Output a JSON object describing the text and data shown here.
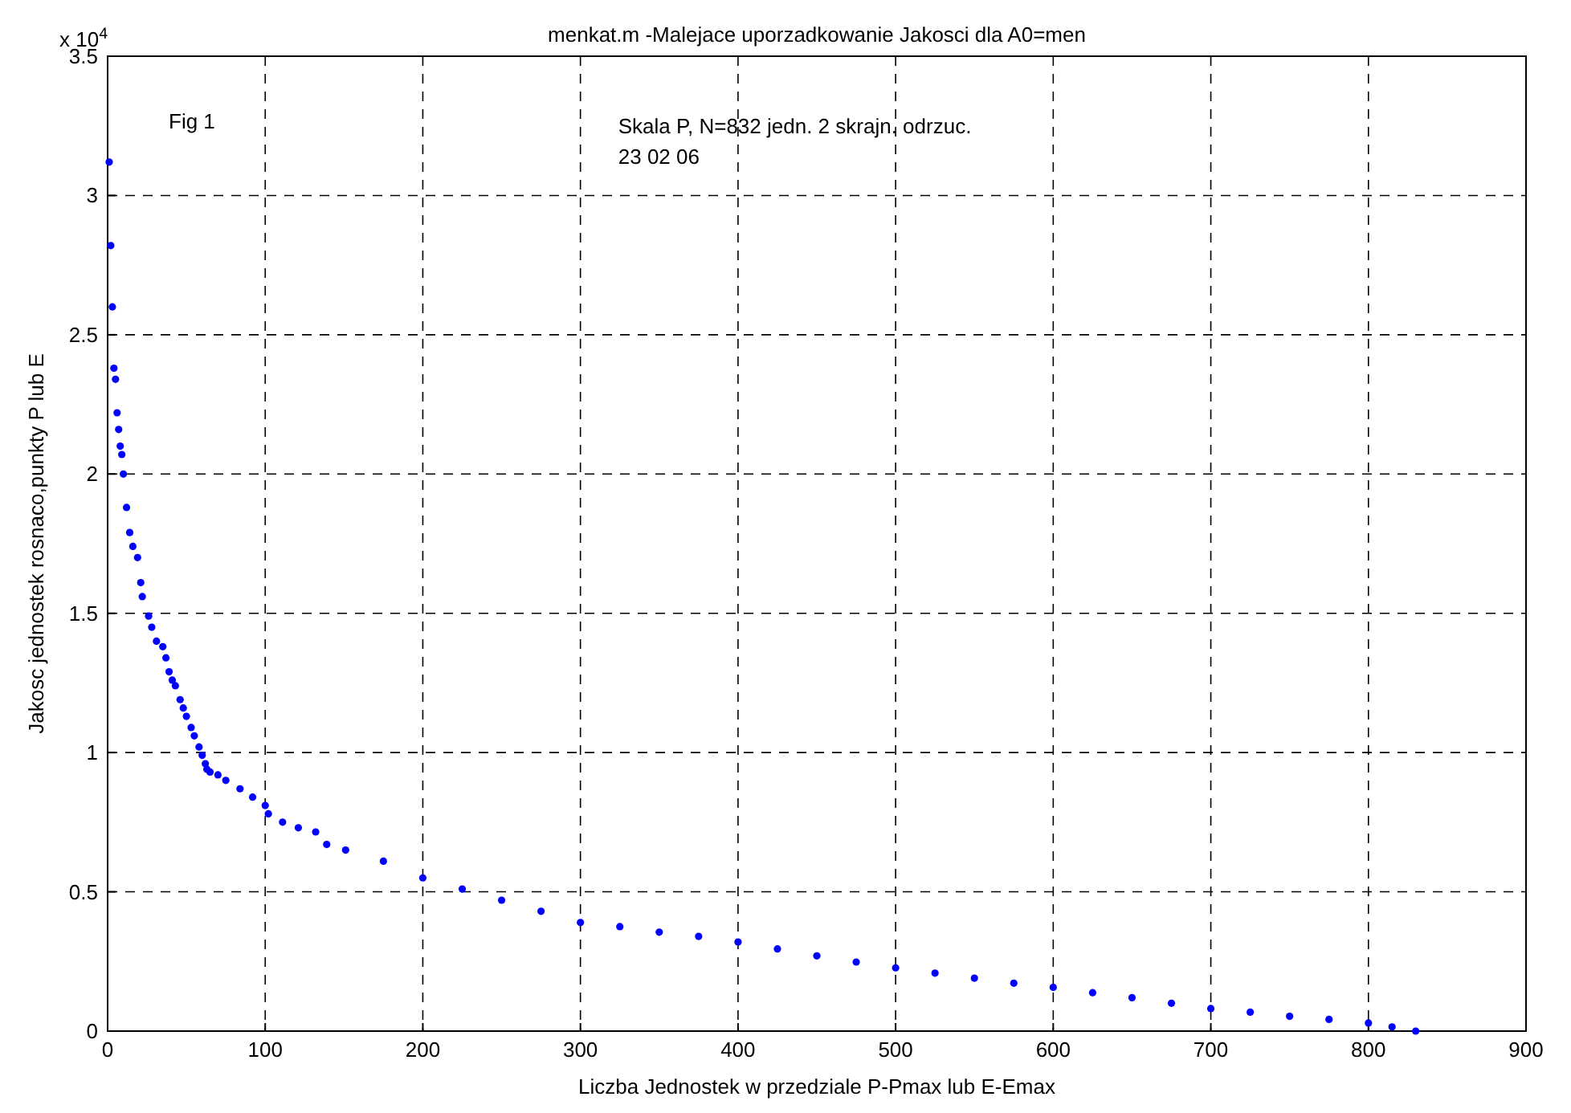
{
  "chart_data": {
    "type": "scatter",
    "title": "menkat.m -Malejace uporzadkowanie Jakosci dla A0=men",
    "xlabel": "Liczba Jednostek w przedziale P-Pmax lub E-Emax",
    "ylabel": "Jakosc jednostek rosnaco,punkty P lub E",
    "annotations": [
      "x 10$^{4}$",
      "Fig 1",
      "Skala P, N=832 jedn. 2 skrajn. odrzuc.",
      "23 02 06"
    ],
    "xlim": [
      0,
      900
    ],
    "xticks": [
      0,
      100,
      200,
      300,
      400,
      500,
      600,
      700,
      800,
      900
    ],
    "ylim": [
      0,
      3.5
    ],
    "yticks": [
      0,
      0.5,
      1,
      1.5,
      2,
      2.5,
      3,
      3.5
    ],
    "grid": true,
    "marker": "circle",
    "series": [
      {
        "color": "#0000ff",
        "x": [
          1,
          2,
          3,
          4,
          5,
          6,
          7,
          8,
          9,
          10,
          12,
          14,
          16,
          19,
          21,
          22,
          26,
          28,
          31,
          35,
          37,
          39,
          41,
          43,
          46,
          48,
          50,
          53,
          55,
          58,
          60,
          62,
          63,
          65,
          70,
          75,
          84,
          92,
          100,
          102,
          111,
          121,
          132,
          139,
          151,
          175,
          200,
          225,
          250,
          275,
          300,
          325,
          350,
          375,
          400,
          425,
          450,
          475,
          500,
          525,
          550,
          575,
          600,
          625,
          650,
          675,
          700,
          725,
          750,
          775,
          800,
          815,
          830
        ],
        "values": [
          3.12,
          2.82,
          2.6,
          2.38,
          2.34,
          2.22,
          2.16,
          2.1,
          2.07,
          2.0,
          1.88,
          1.79,
          1.74,
          1.7,
          1.61,
          1.56,
          1.49,
          1.45,
          1.4,
          1.38,
          1.34,
          1.29,
          1.26,
          1.24,
          1.19,
          1.16,
          1.13,
          1.09,
          1.06,
          1.02,
          0.99,
          0.96,
          0.94,
          0.93,
          0.92,
          0.9,
          0.87,
          0.84,
          0.81,
          0.78,
          0.75,
          0.73,
          0.715,
          0.67,
          0.65,
          0.61,
          0.55,
          0.51,
          0.47,
          0.43,
          0.39,
          0.375,
          0.355,
          0.34,
          0.32,
          0.295,
          0.27,
          0.248,
          0.227,
          0.208,
          0.19,
          0.172,
          0.157,
          0.138,
          0.12,
          0.1,
          0.081,
          0.068,
          0.053,
          0.042,
          0.029,
          0.015,
          0
        ]
      }
    ]
  }
}
